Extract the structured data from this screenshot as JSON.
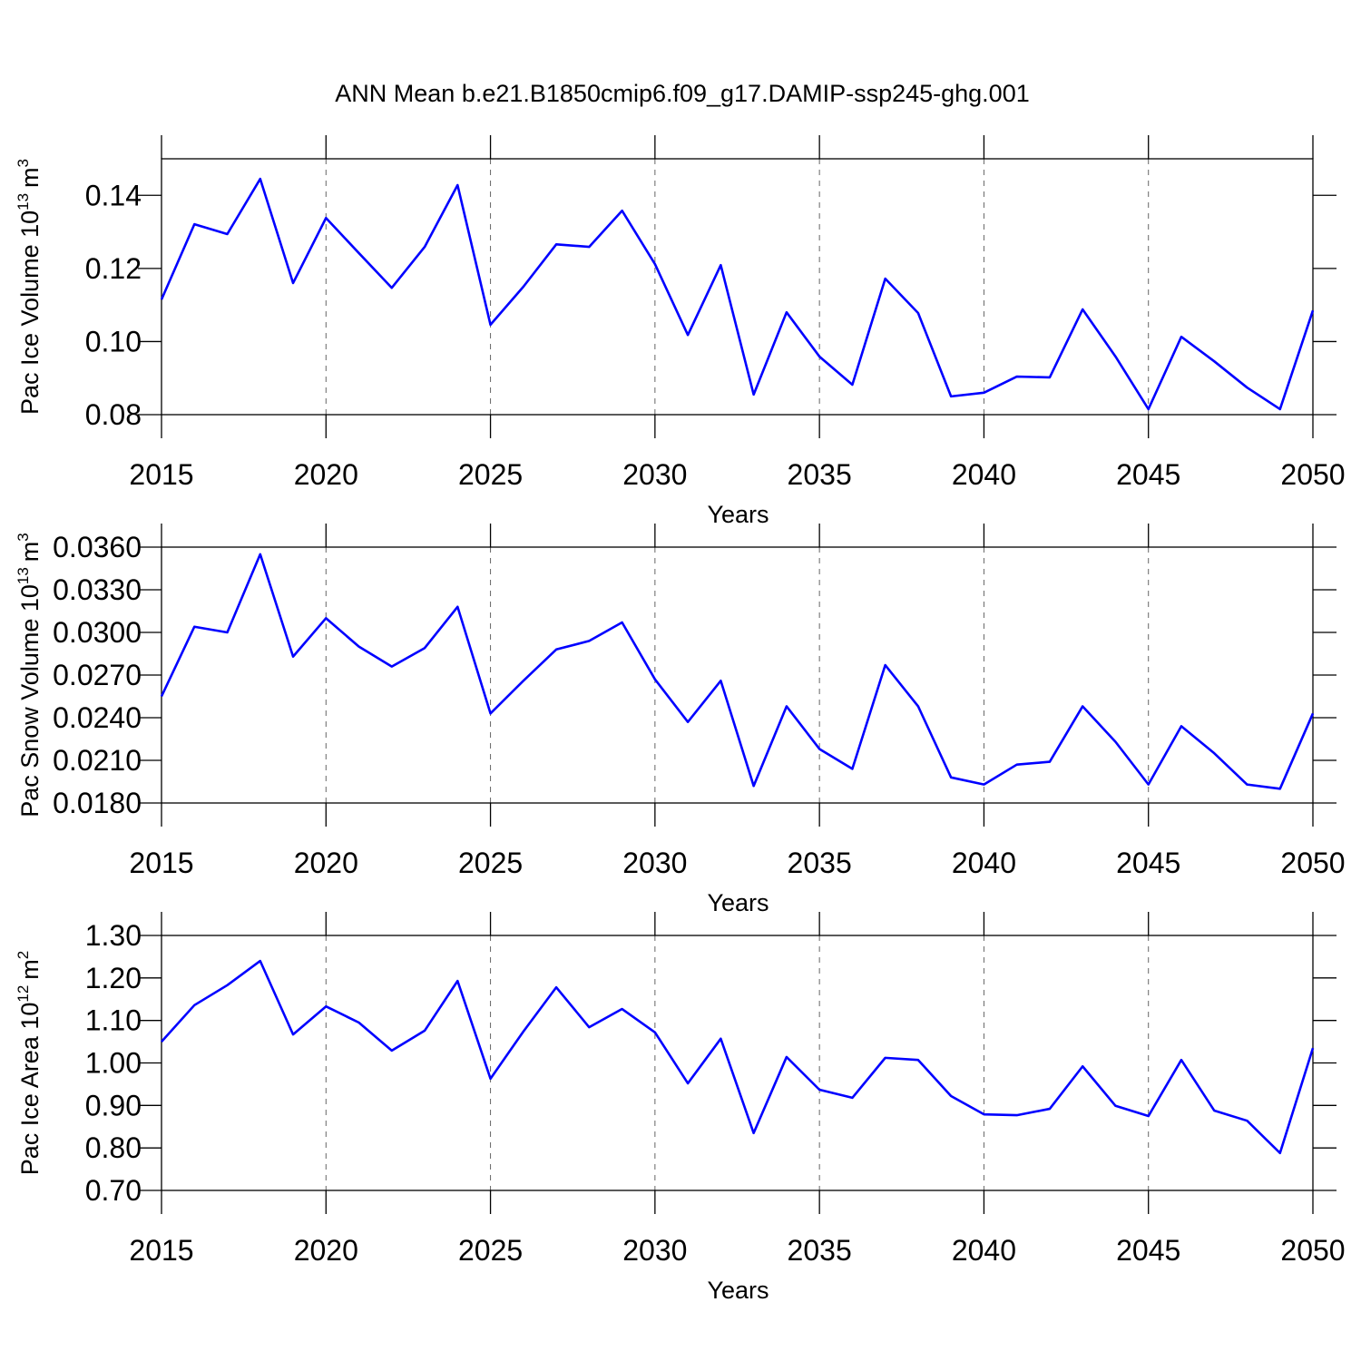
{
  "title": "ANN Mean b.e21.B1850cmip6.f09_g17.DAMIP-ssp245-ghg.001",
  "chart_data": [
    {
      "type": "line",
      "xlabel": "Years",
      "ylabel": {
        "text": "Pac Ice Volume 10",
        "exp": "13",
        "unit": "m",
        "unit_exp": "3"
      },
      "x": [
        2015,
        2016,
        2017,
        2018,
        2019,
        2020,
        2021,
        2022,
        2023,
        2024,
        2025,
        2026,
        2027,
        2028,
        2029,
        2030,
        2031,
        2032,
        2033,
        2034,
        2035,
        2036,
        2037,
        2038,
        2039,
        2040,
        2041,
        2042,
        2043,
        2044,
        2045,
        2046,
        2047,
        2048,
        2049,
        2050
      ],
      "values": [
        0.1115,
        0.1321,
        0.1294,
        0.1445,
        0.116,
        0.1338,
        0.1242,
        0.1147,
        0.1259,
        0.1428,
        0.1046,
        0.115,
        0.1266,
        0.1259,
        0.1358,
        0.1212,
        0.1018,
        0.1209,
        0.0855,
        0.108,
        0.0959,
        0.0882,
        0.1172,
        0.1078,
        0.085,
        0.086,
        0.0904,
        0.0902,
        0.1088,
        0.0959,
        0.0815,
        0.1013,
        0.0946,
        0.0874,
        0.0815,
        0.1085
      ],
      "color": "#0000ff",
      "xlim": [
        2015,
        2050
      ],
      "xticks": [
        2015,
        2020,
        2025,
        2030,
        2035,
        2040,
        2045,
        2050
      ],
      "ylim": [
        0.08,
        0.15
      ],
      "yticks": [
        0.08,
        {
          "value": 0.1,
          "label": "0.10"
        },
        0.12,
        0.14
      ],
      "grid": true
    },
    {
      "type": "line",
      "xlabel": "Years",
      "ylabel": {
        "text": "Pac Snow Volume 10",
        "exp": "13",
        "unit": "m",
        "unit_exp": "3"
      },
      "x": [
        2015,
        2016,
        2017,
        2018,
        2019,
        2020,
        2021,
        2022,
        2023,
        2024,
        2025,
        2026,
        2027,
        2028,
        2029,
        2030,
        2031,
        2032,
        2033,
        2034,
        2035,
        2036,
        2037,
        2038,
        2039,
        2040,
        2041,
        2042,
        2043,
        2044,
        2045,
        2046,
        2047,
        2048,
        2049,
        2050
      ],
      "values": [
        0.0255,
        0.0304,
        0.03,
        0.0355,
        0.0283,
        0.031,
        0.029,
        0.0276,
        0.0289,
        0.0318,
        0.0243,
        0.0266,
        0.0288,
        0.0294,
        0.0307,
        0.0267,
        0.0237,
        0.0266,
        0.0192,
        0.0248,
        0.0218,
        0.0204,
        0.0277,
        0.0248,
        0.0198,
        0.0193,
        0.0207,
        0.0209,
        0.0248,
        0.0223,
        0.0193,
        0.0234,
        0.0215,
        0.0193,
        0.019,
        0.0243
      ],
      "color": "#0000ff",
      "xlim": [
        2015,
        2050
      ],
      "xticks": [
        2015,
        2020,
        2025,
        2030,
        2035,
        2040,
        2045,
        2050
      ],
      "ylim": [
        0.018,
        0.036
      ],
      "yticks": [
        {
          "value": 0.018,
          "label": "0.0180"
        },
        {
          "value": 0.021,
          "label": "0.0210"
        },
        {
          "value": 0.024,
          "label": "0.0240"
        },
        {
          "value": 0.027,
          "label": "0.0270"
        },
        {
          "value": 0.03,
          "label": "0.0300"
        },
        {
          "value": 0.033,
          "label": "0.0330"
        },
        {
          "value": 0.036,
          "label": "0.0360"
        }
      ],
      "grid": true
    },
    {
      "type": "line",
      "xlabel": "Years",
      "ylabel": {
        "text": "Pac Ice Area 10",
        "exp": "12",
        "unit": "m",
        "unit_exp": "2"
      },
      "x": [
        2015,
        2016,
        2017,
        2018,
        2019,
        2020,
        2021,
        2022,
        2023,
        2024,
        2025,
        2026,
        2027,
        2028,
        2029,
        2030,
        2031,
        2032,
        2033,
        2034,
        2035,
        2036,
        2037,
        2038,
        2039,
        2040,
        2041,
        2042,
        2043,
        2044,
        2045,
        2046,
        2047,
        2048,
        2049,
        2050
      ],
      "values": [
        1.05,
        1.136,
        1.183,
        1.24,
        1.067,
        1.133,
        1.095,
        1.029,
        1.076,
        1.193,
        0.963,
        1.074,
        1.178,
        1.084,
        1.127,
        1.072,
        0.952,
        1.057,
        0.835,
        1.014,
        0.937,
        0.918,
        1.012,
        1.007,
        0.922,
        0.879,
        0.877,
        0.892,
        0.992,
        0.899,
        0.875,
        1.007,
        0.888,
        0.864,
        0.788,
        1.035
      ],
      "color": "#0000ff",
      "xlim": [
        2015,
        2050
      ],
      "xticks": [
        2015,
        2020,
        2025,
        2030,
        2035,
        2040,
        2045,
        2050
      ],
      "ylim": [
        0.7,
        1.3
      ],
      "yticks": [
        {
          "value": 0.7,
          "label": "0.70"
        },
        {
          "value": 0.8,
          "label": "0.80"
        },
        {
          "value": 0.9,
          "label": "0.90"
        },
        {
          "value": 1.0,
          "label": "1.00"
        },
        {
          "value": 1.1,
          "label": "1.10"
        },
        {
          "value": 1.2,
          "label": "1.20"
        },
        {
          "value": 1.3,
          "label": "1.30"
        }
      ],
      "grid": true
    }
  ]
}
